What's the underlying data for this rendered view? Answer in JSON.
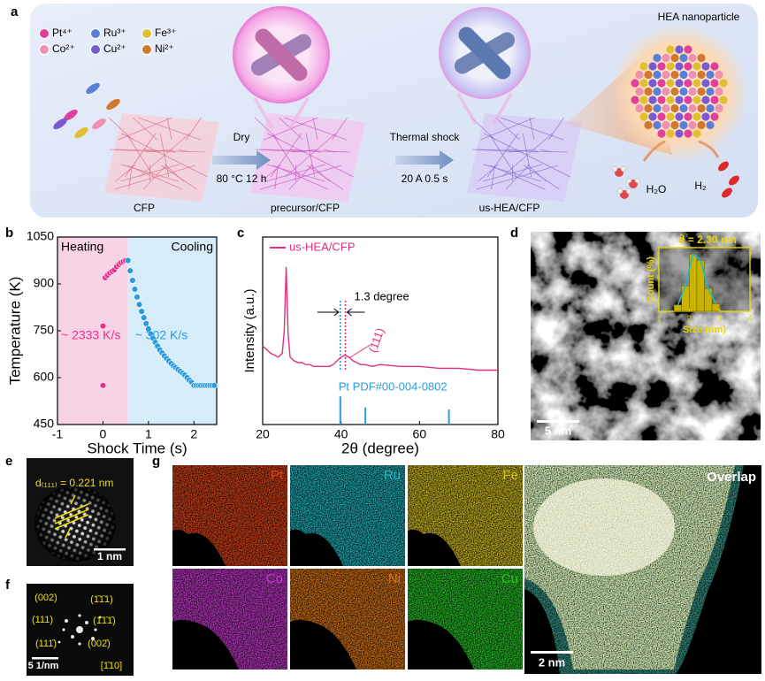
{
  "panel_labels": [
    "a",
    "b",
    "c",
    "d",
    "e",
    "f",
    "g"
  ],
  "scheme": {
    "ions": [
      {
        "label": "Pt⁴⁺",
        "color": "#e0409a"
      },
      {
        "label": "Ru³⁺",
        "color": "#5b7fd8"
      },
      {
        "label": "Fe³⁺",
        "color": "#e0c030"
      },
      {
        "label": "Co²⁺",
        "color": "#f090b0"
      },
      {
        "label": "Cu²⁺",
        "color": "#7a5ad0"
      },
      {
        "label": "Ni²⁺",
        "color": "#d07830"
      }
    ],
    "steps": [
      "CFP",
      "precursor/CFP",
      "us-HEA/CFP"
    ],
    "arrows": [
      {
        "above": "Dry",
        "below": "80 °C 12 h"
      },
      {
        "above": "Thermal shock",
        "below": "20 A 0.5 s"
      }
    ],
    "particle": "HEA nanoparticle",
    "reactant": "H₂O",
    "product": "H₂"
  },
  "chart_data": [
    {
      "type": "scatter",
      "xlabel": "Shock Time (s)",
      "ylabel": "Temperature (K)",
      "xlim": [
        -1,
        2.5
      ],
      "xticks": [
        -1,
        0,
        1,
        2
      ],
      "ylim": [
        450,
        1050
      ],
      "yticks": [
        450,
        600,
        750,
        900,
        1050
      ],
      "series": [
        {
          "name": "Heating",
          "rate": "~ 2333 K/s",
          "color": "#e8308a",
          "region": [
            -1,
            0.55
          ],
          "region_color": "#f8d3e6",
          "x": [
            0,
            0,
            0.05,
            0.1,
            0.15,
            0.2,
            0.25,
            0.3,
            0.35,
            0.4,
            0.45,
            0.5
          ],
          "values": [
            575,
            765,
            920,
            928,
            935,
            940,
            945,
            955,
            962,
            968,
            972,
            975
          ]
        },
        {
          "name": "Cooling",
          "rate": "~ 302 K/s",
          "color": "#2b9be0",
          "region": [
            0.55,
            2.5
          ],
          "region_color": "#d6ecf8",
          "x": [
            0.55,
            0.6,
            0.65,
            0.7,
            0.75,
            0.8,
            0.85,
            0.9,
            0.95,
            1.0,
            1.05,
            1.1,
            1.15,
            1.2,
            1.25,
            1.3,
            1.35,
            1.4,
            1.45,
            1.5,
            1.55,
            1.6,
            1.65,
            1.7,
            1.75,
            1.8,
            1.85,
            1.9,
            1.95,
            2.0,
            2.05,
            2.1,
            2.15,
            2.2,
            2.25,
            2.3,
            2.35,
            2.4,
            2.45
          ],
          "values": [
            975,
            942,
            911,
            883,
            858,
            834,
            812,
            792,
            773,
            756,
            740,
            726,
            713,
            701,
            689,
            679,
            670,
            661,
            653,
            645,
            638,
            632,
            626,
            620,
            614,
            608,
            600,
            592,
            585,
            575,
            575,
            575,
            575,
            575,
            575,
            575,
            575,
            575,
            575
          ]
        }
      ]
    },
    {
      "type": "line",
      "xlabel": "2θ (degree)",
      "ylabel": "Intensity (a.u.)",
      "xlim": [
        20,
        80
      ],
      "xticks": [
        20,
        40,
        60,
        80
      ],
      "ylim": [
        0,
        100
      ],
      "series": [
        {
          "name": "us-HEA/CFP",
          "color": "#e0307e",
          "x": [
            20,
            21,
            22,
            23,
            24,
            25,
            25.5,
            26,
            26.5,
            27,
            28,
            29,
            30,
            31,
            32,
            33,
            34,
            35,
            36,
            37,
            38,
            39,
            40,
            41,
            42,
            43,
            44,
            45,
            46,
            48,
            50,
            55,
            60,
            65,
            70,
            75,
            80
          ],
          "values": [
            42,
            40,
            38,
            37,
            36,
            38,
            50,
            84,
            48,
            36,
            34,
            33,
            33,
            32,
            32,
            31,
            31,
            31,
            31,
            31,
            32,
            34,
            36,
            37,
            36,
            34,
            33,
            32,
            32,
            31,
            32,
            31,
            31,
            30,
            30,
            29,
            29
          ]
        }
      ],
      "reference": {
        "name": "Pt PDF#00-004-0802",
        "color": "#2b9be0",
        "x": [
          39.8,
          46.2,
          67.5
        ],
        "values": [
          15,
          9,
          8
        ]
      },
      "markers": [
        {
          "x": 39.8,
          "color": "#2b9be0"
        },
        {
          "x": 41.1,
          "color": "#e0307e"
        }
      ],
      "shift_label": "1.3 degree",
      "peak_label": "(111)"
    },
    {
      "type": "histogram",
      "title": "d̄ = 2.30 nm",
      "xlabel": "Size (nm)",
      "ylabel": "Count (%)",
      "xlim": [
        1,
        4
      ],
      "xticks": [
        1,
        2,
        3,
        4
      ],
      "ylim": [
        0,
        50
      ],
      "bins": [
        1.5,
        1.75,
        2.0,
        2.25,
        2.5,
        2.75,
        3.0
      ],
      "counts": [
        5,
        20,
        45,
        40,
        18,
        6
      ],
      "color": "#c8b400",
      "curve_color": "#20b8c8"
    }
  ],
  "tem": {
    "scale": "5 nm"
  },
  "hrtem": {
    "d_spacing": "d₍₁₁₁₎ = 0.221 nm",
    "scale": "1 nm"
  },
  "fft": {
    "spots": [
      "(002)",
      "(1̄1̄1)",
      "(111)",
      "(1̄1̄1̄)",
      "(111̄)",
      "(002̄)"
    ],
    "scale": "5 1/nm",
    "zone_axis": "[1̄10]"
  },
  "mapping": {
    "elements": [
      {
        "label": "Pt",
        "color": "#e0451a"
      },
      {
        "label": "Ru",
        "color": "#20b8c0"
      },
      {
        "label": "Fe",
        "color": "#d6c21e"
      },
      {
        "label": "Co",
        "color": "#c93ad0"
      },
      {
        "label": "Ni",
        "color": "#e07818"
      },
      {
        "label": "Cu",
        "color": "#28c828"
      }
    ],
    "overlap": "Overlap",
    "scale": "2 nm"
  }
}
